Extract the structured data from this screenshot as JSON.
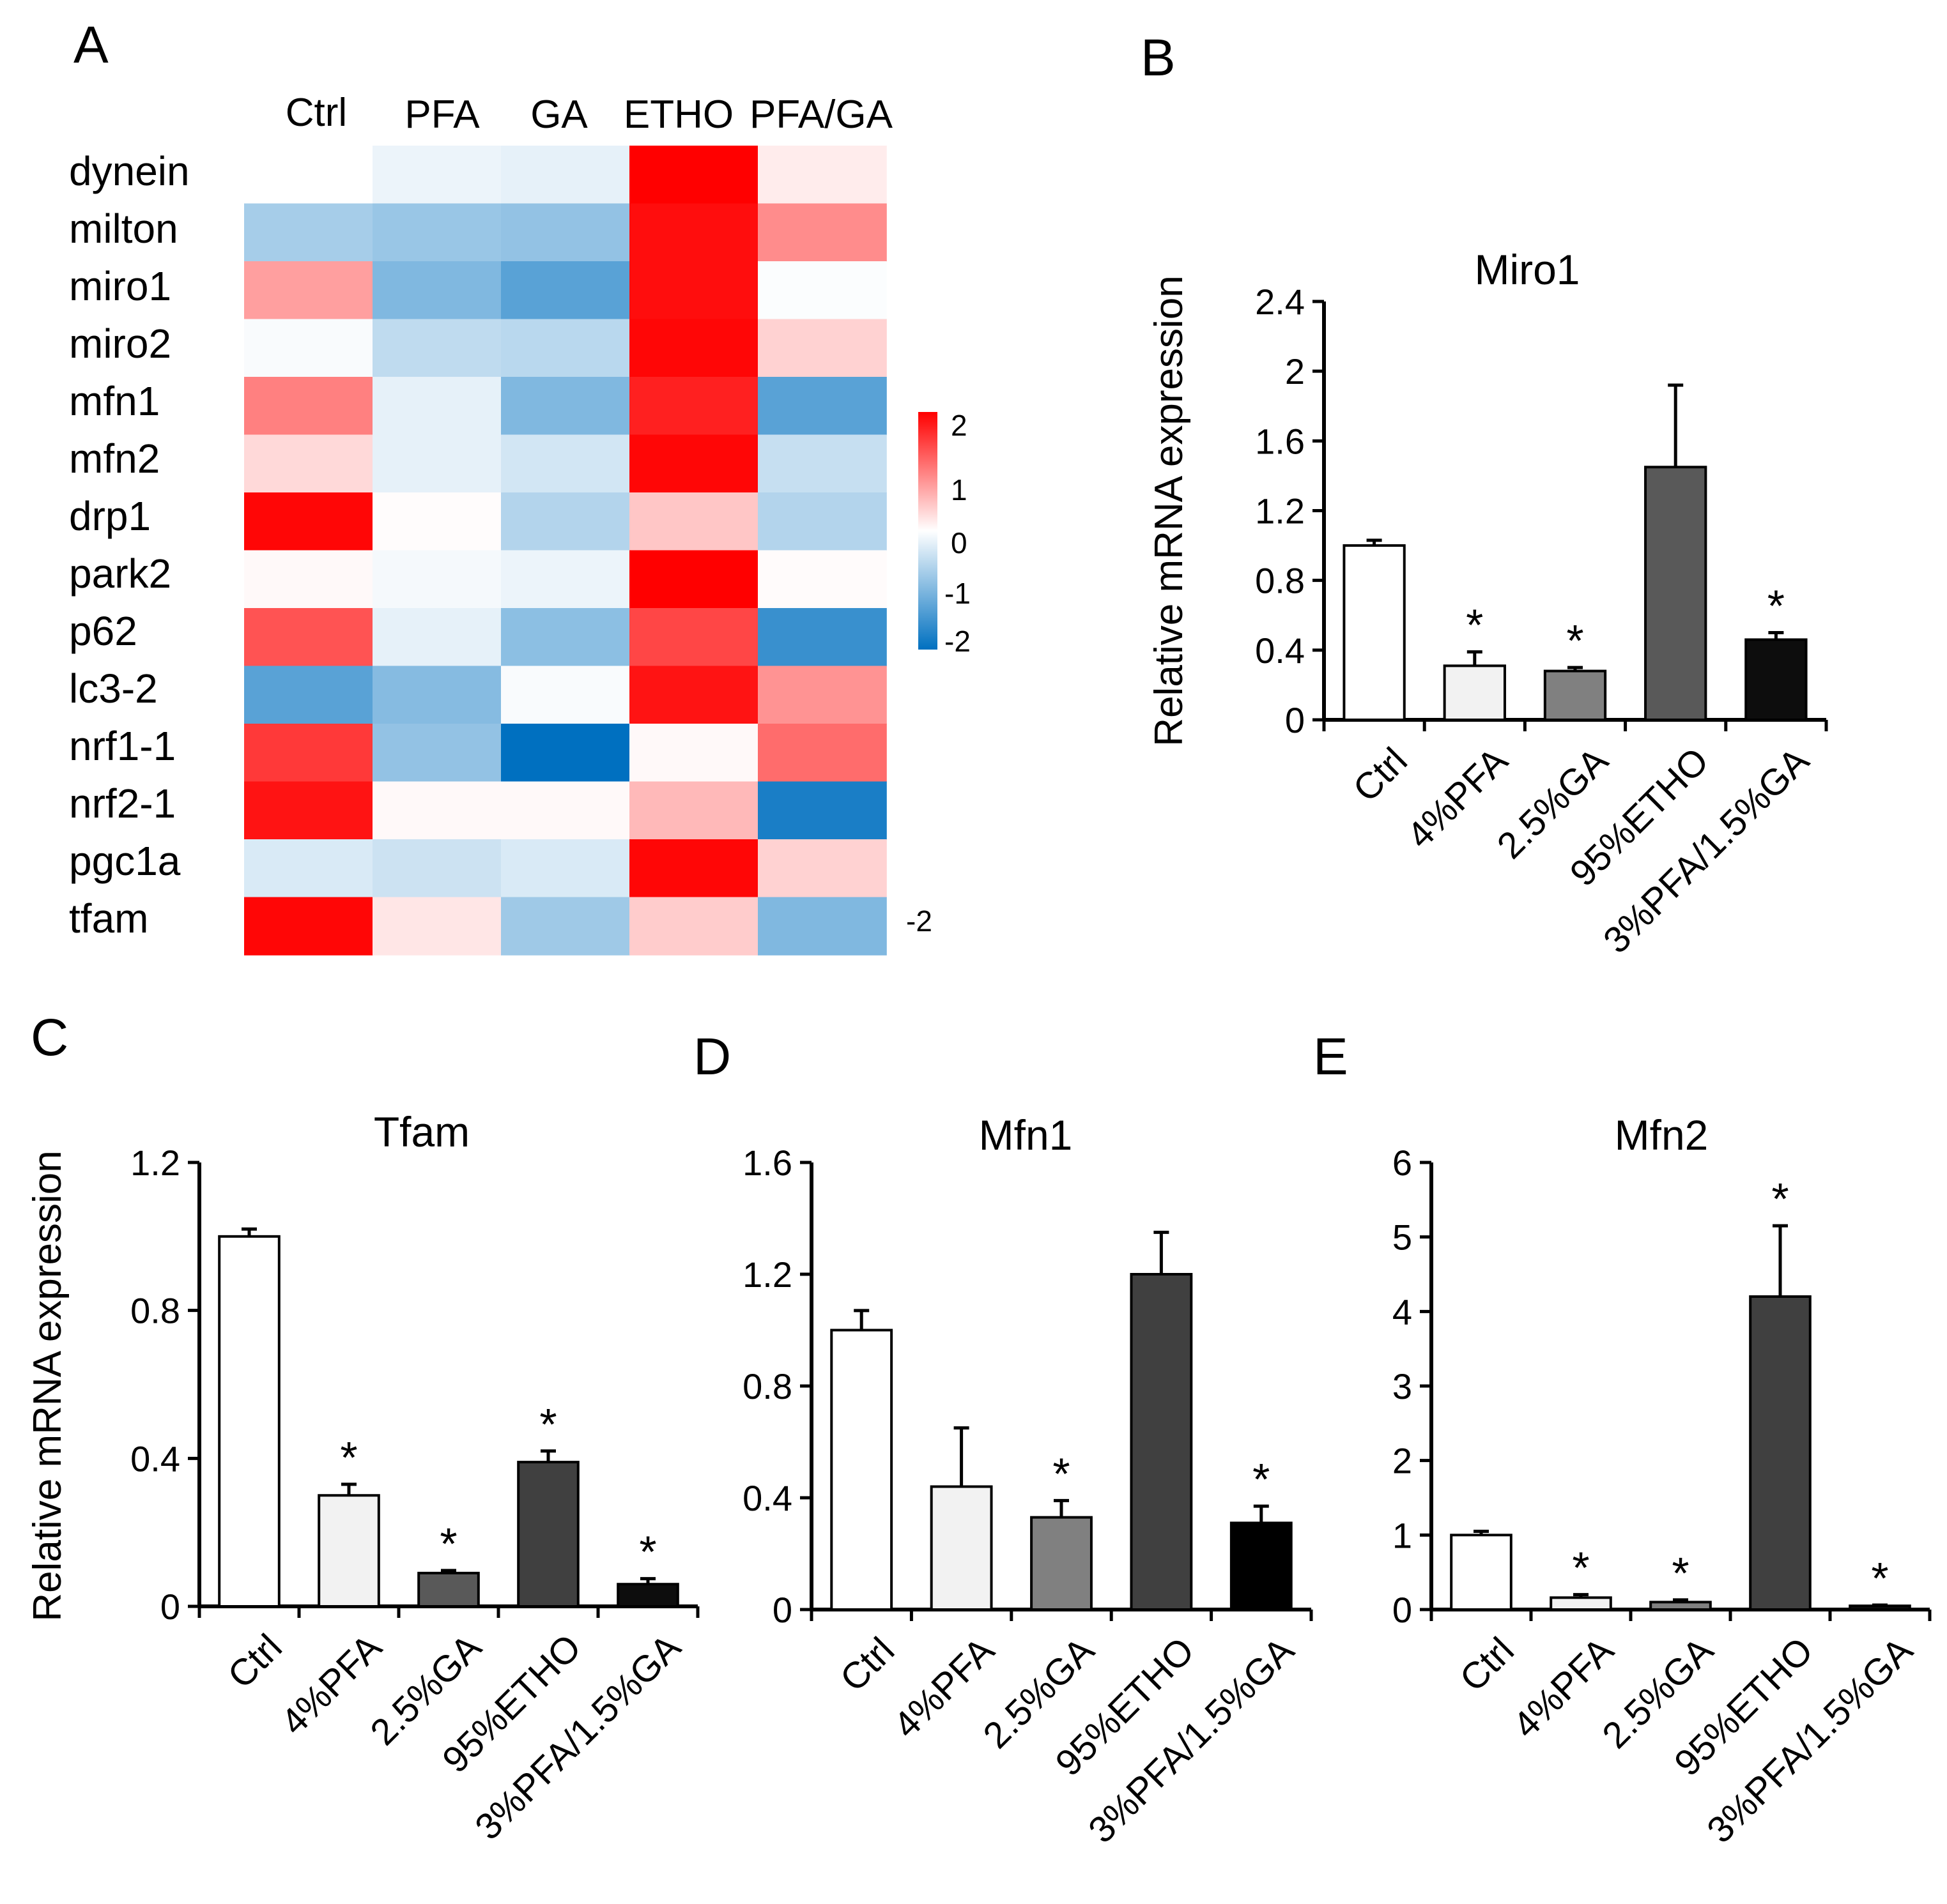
{
  "panels": {
    "a": {
      "label": "A"
    },
    "b": {
      "label": "B"
    },
    "c": {
      "label": "C"
    },
    "d": {
      "label": "D"
    },
    "e": {
      "label": "E"
    }
  },
  "heatmap": {
    "columns": [
      "Ctrl",
      "PFA",
      "GA",
      "ETHO",
      "PFA/GA"
    ],
    "rows": [
      "dynein",
      "milton",
      "miro1",
      "miro2",
      "mfn1",
      "mfn2",
      "drp1",
      "park2",
      "p62",
      "lc3-2",
      "nrf1-1",
      "nrf2-1",
      "pgc1a",
      "tfam"
    ],
    "values": [
      [
        null,
        -0.15,
        -0.2,
        2.0,
        0.15
      ],
      [
        -0.7,
        -0.8,
        -0.85,
        1.9,
        0.9
      ],
      [
        0.75,
        -1.0,
        -1.3,
        1.9,
        -0.03
      ],
      [
        -0.05,
        -0.5,
        -0.55,
        1.95,
        0.35
      ],
      [
        1.0,
        -0.2,
        -1.0,
        1.75,
        -1.3
      ],
      [
        0.3,
        -0.2,
        -0.35,
        1.95,
        -0.45
      ],
      [
        1.95,
        0.02,
        -0.6,
        0.45,
        -0.6
      ],
      [
        0.05,
        -0.08,
        -0.15,
        2.0,
        0.03
      ],
      [
        1.35,
        -0.2,
        -0.9,
        1.45,
        -1.55
      ],
      [
        -1.3,
        -0.95,
        -0.05,
        1.85,
        0.85
      ],
      [
        1.55,
        -0.85,
        -2.0,
        0.05,
        1.15
      ],
      [
        1.85,
        0.05,
        0.05,
        0.55,
        -1.8
      ],
      [
        -0.3,
        -0.4,
        -0.3,
        1.95,
        0.35
      ],
      [
        1.95,
        0.2,
        -0.75,
        0.4,
        -1.0
      ]
    ],
    "colorbar": {
      "ticks": [
        "2",
        "1",
        "0",
        "-1",
        "-2"
      ],
      "min": -2,
      "max": 2,
      "low_color": "#0070C0",
      "mid_color": "#FFFFFF",
      "high_color": "#FF0000"
    },
    "stray_label": "-2"
  },
  "chart_data": [
    {
      "id": "miro1",
      "type": "bar",
      "title": "Miro1",
      "ylabel": "Relative mRNA expression",
      "categories": [
        "Ctrl",
        "4%PFA",
        "2.5%GA",
        "95%ETHO",
        "3%PFA/1.5%GA"
      ],
      "values": [
        1.0,
        0.31,
        0.28,
        1.45,
        0.46
      ],
      "errors": [
        0.03,
        0.08,
        0.02,
        0.47,
        0.04
      ],
      "significance": [
        "",
        "*",
        "*",
        "",
        "*"
      ],
      "bar_colors": [
        "#FFFFFF",
        "#F2F2F2",
        "#808080",
        "#595959",
        "#0D0D0D"
      ],
      "ylim": [
        0,
        2.4
      ],
      "yticks": [
        0,
        0.4,
        0.8,
        1.2,
        1.6,
        2,
        2.4
      ],
      "ytick_labels": [
        "0",
        "0.4",
        "0.8",
        "1.2",
        "1.6",
        "2",
        "2.4"
      ]
    },
    {
      "id": "tfam",
      "type": "bar",
      "title": "Tfam",
      "ylabel": "Relative mRNA expression",
      "categories": [
        "Ctrl",
        "4%PFA",
        "2.5%GA",
        "95%ETHO",
        "3%PFA/1.5%GA"
      ],
      "values": [
        1.0,
        0.3,
        0.09,
        0.39,
        0.06
      ],
      "errors": [
        0.02,
        0.03,
        0.007,
        0.03,
        0.015
      ],
      "significance": [
        "",
        "*",
        "*",
        "*",
        "*"
      ],
      "bar_colors": [
        "#FFFFFF",
        "#F2F2F2",
        "#595959",
        "#404040",
        "#0D0D0D"
      ],
      "ylim": [
        0,
        1.2
      ],
      "yticks": [
        0,
        0.4,
        0.8,
        1.2
      ],
      "ytick_labels": [
        "0",
        "0.4",
        "0.8",
        "1.2"
      ]
    },
    {
      "id": "mfn1",
      "type": "bar",
      "title": "Mfn1",
      "ylabel": "",
      "categories": [
        "Ctrl",
        "4%PFA",
        "2.5%GA",
        "95%ETHO",
        "3%PFA/1.5%GA"
      ],
      "values": [
        1.0,
        0.44,
        0.33,
        1.2,
        0.31
      ],
      "errors": [
        0.07,
        0.21,
        0.06,
        0.15,
        0.06
      ],
      "significance": [
        "",
        "",
        "*",
        "",
        "*"
      ],
      "bar_colors": [
        "#FFFFFF",
        "#F2F2F2",
        "#808080",
        "#404040",
        "#000000"
      ],
      "ylim": [
        0,
        1.6
      ],
      "yticks": [
        0,
        0.4,
        0.8,
        1.2,
        1.6
      ],
      "ytick_labels": [
        "0",
        "0.4",
        "0.8",
        "1.2",
        "1.6"
      ]
    },
    {
      "id": "mfn2",
      "type": "bar",
      "title": "Mfn2",
      "ylabel": "",
      "categories": [
        "Ctrl",
        "4%PFA",
        "2.5%GA",
        "95%ETHO",
        "3%PFA/1.5%GA"
      ],
      "values": [
        1.0,
        0.16,
        0.1,
        4.2,
        0.05
      ],
      "errors": [
        0.05,
        0.04,
        0.03,
        0.95,
        0.01
      ],
      "significance": [
        "",
        "*",
        "*",
        "*",
        "*"
      ],
      "bar_colors": [
        "#FFFFFF",
        "#F2F2F2",
        "#808080",
        "#404040",
        "#0D0D0D"
      ],
      "ylim": [
        0,
        6
      ],
      "yticks": [
        0,
        1,
        2,
        3,
        4,
        5,
        6
      ],
      "ytick_labels": [
        "0",
        "1",
        "2",
        "3",
        "4",
        "5",
        "6"
      ]
    }
  ]
}
